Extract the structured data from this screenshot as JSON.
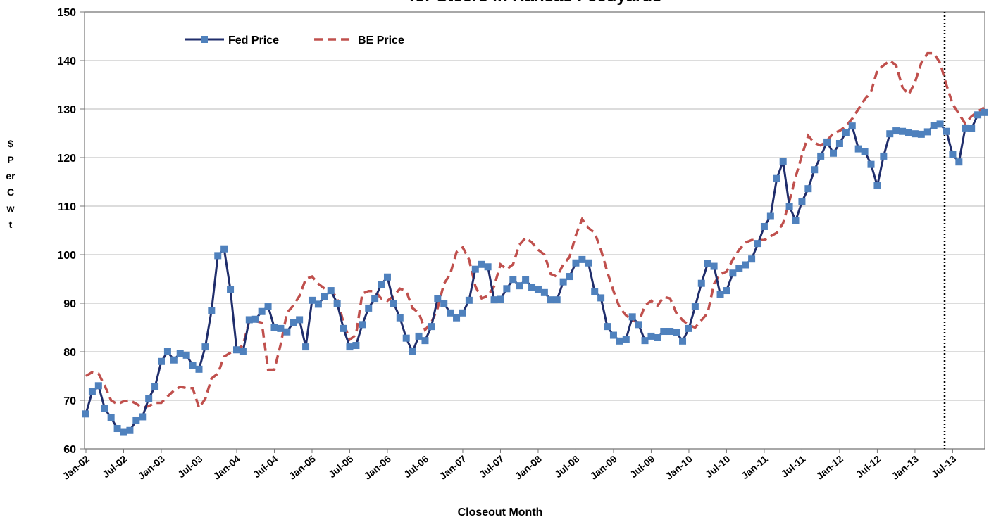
{
  "chart_data": {
    "type": "line",
    "title": "for Steers in Kansas Feedyards",
    "x_label": "Closeout Month",
    "y_label": "$ Per Cwt",
    "categories": [
      "Jan-02",
      null,
      null,
      null,
      null,
      null,
      "Jul-02",
      null,
      null,
      null,
      null,
      null,
      "Jan-03",
      null,
      null,
      null,
      null,
      null,
      "Jul-03",
      null,
      null,
      null,
      null,
      null,
      "Jan-04",
      null,
      null,
      null,
      null,
      null,
      "Jul-04",
      null,
      null,
      null,
      null,
      null,
      "Jan-05",
      null,
      null,
      null,
      null,
      null,
      "Jul-05",
      null,
      null,
      null,
      null,
      null,
      "Jan-06",
      null,
      null,
      null,
      null,
      null,
      "Jul-06",
      null,
      null,
      null,
      null,
      null,
      "Jan-07",
      null,
      null,
      null,
      null,
      null,
      "Jul-07",
      null,
      null,
      null,
      null,
      null,
      "Jan-08",
      null,
      null,
      null,
      null,
      null,
      "Jul-08",
      null,
      null,
      null,
      null,
      null,
      "Jan-09",
      null,
      null,
      null,
      null,
      null,
      "Jul-09",
      null,
      null,
      null,
      null,
      null,
      "Jan-10",
      null,
      null,
      null,
      null,
      null,
      "Jul-10",
      null,
      null,
      null,
      null,
      null,
      "Jan-11",
      null,
      null,
      null,
      null,
      null,
      "Jul-11",
      null,
      null,
      null,
      null,
      null,
      "Jan-12",
      null,
      null,
      null,
      null,
      null,
      "Jul-12",
      null,
      null,
      null,
      null,
      null,
      "Jan-13",
      null,
      null,
      null,
      null,
      null,
      "Jul-13",
      null,
      null,
      null,
      null,
      null
    ],
    "series": [
      {
        "name": "Fed Price",
        "color": "#1f2d6b",
        "marker_color": "#4f81bd",
        "dashed": false,
        "values": [
          67.2,
          71.8,
          73,
          68.3,
          66.4,
          64.2,
          63.4,
          63.8,
          65.8,
          66.6,
          70.4,
          72.8,
          78,
          80,
          78.3,
          79.7,
          79.3,
          77.2,
          76.4,
          81,
          88.5,
          99.8,
          101.2,
          92.8,
          80.4,
          80,
          86.6,
          86.7,
          88.3,
          89.4,
          85,
          84.8,
          84.1,
          86,
          86.6,
          81,
          90.6,
          89.8,
          91.4,
          92.6,
          90,
          84.8,
          81,
          81.3,
          85.6,
          89,
          91,
          93.8,
          95.4,
          90,
          87,
          82.8,
          80,
          83.2,
          82.3,
          85.2,
          91,
          90,
          88,
          87,
          88,
          90.6,
          97,
          98,
          97.5,
          90.7,
          90.8,
          93,
          94.9,
          93.6,
          94.8,
          93.3,
          92.9,
          92.2,
          90.7,
          90.7,
          94.4,
          95.5,
          98.3,
          99,
          98.3,
          92.4,
          91.1,
          85.2,
          83.4,
          82.2,
          82.6,
          87.2,
          85.6,
          82.3,
          83.2,
          82.9,
          84.2,
          84.2,
          84,
          82.2,
          84.8,
          89.3,
          94.1,
          98.2,
          97.6,
          91.8,
          92.6,
          96.2,
          97.1,
          97.9,
          99.1,
          102.3,
          105.8,
          107.9,
          115.7,
          119.2,
          110,
          107,
          110.9,
          113.6,
          117.5,
          120.3,
          123.2,
          120.9,
          122.9,
          125.2,
          126.5,
          121.8,
          121.3,
          118.6,
          114.2,
          120.3,
          124.9,
          125.5,
          125.4,
          125.2,
          124.9,
          124.8,
          125.3,
          126.6,
          126.9,
          125.4,
          120.6,
          119.1,
          126.1,
          126,
          128.8,
          129.3
        ]
      },
      {
        "name": "BE Price",
        "color": "#c0504d",
        "dashed": true,
        "values": [
          75,
          75.8,
          75.5,
          73,
          70,
          69.2,
          69.8,
          70,
          69.3,
          68.5,
          68.8,
          69.5,
          69.5,
          70.8,
          72,
          72.8,
          72.5,
          72.5,
          68.5,
          70.3,
          74.5,
          75.5,
          79,
          79.8,
          80.5,
          81.3,
          86.3,
          86.3,
          86,
          76.3,
          76.3,
          81.5,
          88,
          89.5,
          91.5,
          95,
          95.5,
          94,
          93,
          92.8,
          91,
          86,
          82.5,
          83.5,
          92,
          92.5,
          92.5,
          91,
          90.5,
          91.5,
          93,
          92.5,
          89,
          88,
          84.5,
          86,
          89,
          94,
          96,
          100.5,
          101.5,
          99,
          93.5,
          91,
          91.5,
          93.5,
          98,
          97,
          98,
          102,
          103.5,
          102.5,
          101,
          100,
          96,
          95.5,
          98,
          99.5,
          104,
          107.3,
          105.5,
          104.5,
          101,
          96.5,
          92.5,
          89,
          87.5,
          86.5,
          86,
          89.5,
          90.5,
          89.5,
          91.3,
          91,
          88,
          86.5,
          85.5,
          85,
          86.5,
          88,
          94,
          96,
          96.5,
          99,
          101,
          102.5,
          103,
          103,
          103,
          103.8,
          104.5,
          106.5,
          111,
          116,
          120.5,
          124.5,
          123,
          122.5,
          123.5,
          125,
          125.5,
          126.5,
          128,
          130,
          132,
          133.5,
          138,
          139,
          140,
          139,
          134.5,
          133,
          135.5,
          139.5,
          141.5,
          141.5,
          139.5,
          135,
          131,
          129,
          127,
          128.5,
          129.5,
          130.3
        ]
      }
    ],
    "ylim": [
      60,
      150
    ],
    "yticks": [
      60,
      70,
      80,
      90,
      100,
      110,
      120,
      130,
      140,
      150
    ],
    "grid": true,
    "legend": "top-left"
  }
}
